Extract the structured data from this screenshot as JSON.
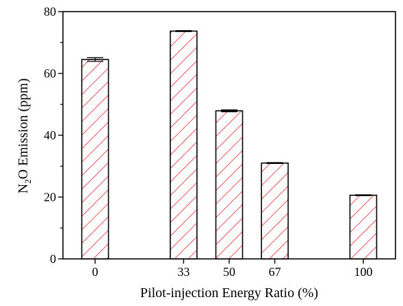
{
  "chart_data": {
    "type": "bar",
    "categories": [
      "0",
      "33",
      "50",
      "67",
      "100"
    ],
    "x": [
      0,
      33,
      50,
      67,
      100
    ],
    "values": [
      64.5,
      73.7,
      47.9,
      31.0,
      20.6
    ],
    "error": [
      0.6,
      0.15,
      0.3,
      0.15,
      0.15
    ],
    "ylabel_parts": [
      "N",
      "2",
      "O Emission (ppm)"
    ],
    "xlabel": "Pilot-injection Energy Ratio (%)",
    "ylim": [
      0,
      80
    ],
    "yticks": [
      0,
      20,
      40,
      60,
      80
    ],
    "grid": false,
    "legend": "none",
    "bar_fill": "#ffffff",
    "hatch_color": "#e8262d",
    "edge_color": "#000000"
  }
}
